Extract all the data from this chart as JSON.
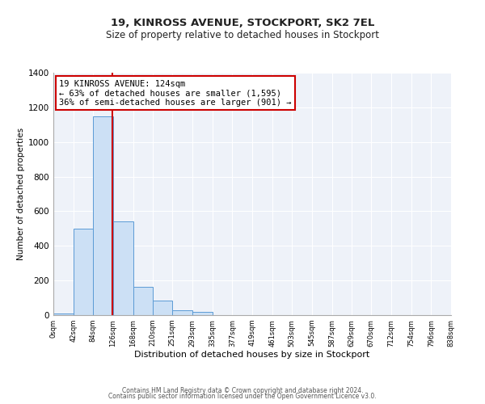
{
  "title": "19, KINROSS AVENUE, STOCKPORT, SK2 7EL",
  "subtitle": "Size of property relative to detached houses in Stockport",
  "xlabel": "Distribution of detached houses by size in Stockport",
  "ylabel": "Number of detached properties",
  "bar_edges": [
    0,
    42,
    84,
    126,
    168,
    210,
    251,
    293,
    335,
    377,
    419,
    461,
    503,
    545,
    587,
    629,
    670,
    712,
    754,
    796,
    838
  ],
  "bar_heights": [
    10,
    500,
    1150,
    540,
    165,
    83,
    28,
    20,
    0,
    0,
    0,
    0,
    0,
    0,
    0,
    0,
    0,
    0,
    0,
    0
  ],
  "bar_color": "#cce0f5",
  "bar_edge_color": "#5b9bd5",
  "property_line_x": 124,
  "property_line_color": "#cc0000",
  "annotation_title": "19 KINROSS AVENUE: 124sqm",
  "annotation_line1": "← 63% of detached houses are smaller (1,595)",
  "annotation_line2": "36% of semi-detached houses are larger (901) →",
  "annotation_box_color": "#ffffff",
  "annotation_box_edge_color": "#cc0000",
  "ylim": [
    0,
    1400
  ],
  "xlim": [
    0,
    838
  ],
  "yticks": [
    0,
    200,
    400,
    600,
    800,
    1000,
    1200,
    1400
  ],
  "xtick_labels": [
    "0sqm",
    "42sqm",
    "84sqm",
    "126sqm",
    "168sqm",
    "210sqm",
    "251sqm",
    "293sqm",
    "335sqm",
    "377sqm",
    "419sqm",
    "461sqm",
    "503sqm",
    "545sqm",
    "587sqm",
    "629sqm",
    "670sqm",
    "712sqm",
    "754sqm",
    "796sqm",
    "838sqm"
  ],
  "footer1": "Contains HM Land Registry data © Crown copyright and database right 2024.",
  "footer2": "Contains public sector information licensed under the Open Government Licence v3.0.",
  "bg_color": "#eef2f9",
  "grid_color": "#ffffff",
  "fig_bg": "#ffffff",
  "title_fontsize": 9.5,
  "subtitle_fontsize": 8.5,
  "ylabel_fontsize": 7.5,
  "xlabel_fontsize": 8,
  "ytick_fontsize": 7.5,
  "xtick_fontsize": 6,
  "annotation_fontsize": 7.5,
  "footer_fontsize": 5.5
}
